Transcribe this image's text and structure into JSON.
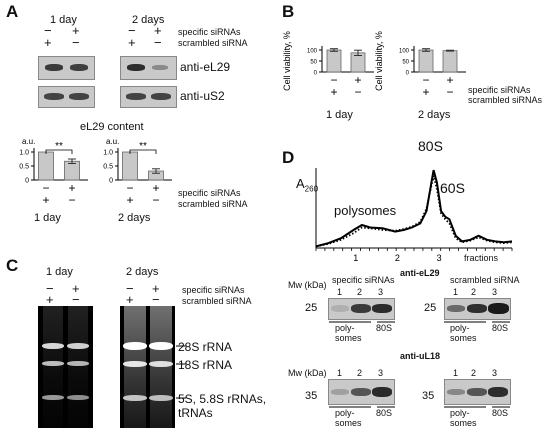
{
  "panels": {
    "A": "A",
    "B": "B",
    "C": "C",
    "D": "D"
  },
  "common": {
    "specific": "specific siRNAs",
    "scrambled": "scrambled siRNA",
    "scrambled_plural": "scrambled siRNAs",
    "minus": "−",
    "plus": "+",
    "day1": "1 day",
    "days2": "2 days"
  },
  "panelA": {
    "antibody1": "anti-eL29",
    "antibody2": "anti-uS2",
    "content_title": "eL29 content",
    "au": "a.u.",
    "significance": "**",
    "ticks": [
      "1.0",
      "0.5",
      "0"
    ]
  },
  "panelB": {
    "ylabel": "Cell viability, %",
    "ticks": [
      "100",
      "50",
      "0"
    ]
  },
  "panelC": {
    "bands": [
      "28S rRNA",
      "18S rRNA",
      "5S, 5.8S rRNAs,",
      "tRNAs"
    ]
  },
  "panelD": {
    "absorbance": "A",
    "absorbance_sub": "260",
    "peak_80s": "80S",
    "peak_60s": "60S",
    "polysomes": "polysomes",
    "fractions": "fractions",
    "xticks": [
      "1",
      "2",
      "3"
    ],
    "blot1_title": "anti-eL29",
    "blot2_title": "anti-uL18",
    "mw": "Mw (kDa)",
    "mw_25": "25",
    "mw_35": "35",
    "lanes": [
      "1",
      "2",
      "3"
    ],
    "poly": "poly-",
    "somes": "somes",
    "s80": "80S"
  },
  "chart_data": [
    {
      "type": "bar",
      "panel": "A-left",
      "title": "eL29 content",
      "ylabel": "a.u.",
      "categories": [
        "scrambled siRNA",
        "specific siRNAs"
      ],
      "values": [
        1.0,
        0.67
      ],
      "errors": [
        0.0,
        0.08
      ],
      "ylim": [
        0,
        1.0
      ],
      "xlabel": "1 day"
    },
    {
      "type": "bar",
      "panel": "A-right",
      "ylabel": "a.u.",
      "categories": [
        "scrambled siRNA",
        "specific siRNAs"
      ],
      "values": [
        1.0,
        0.32
      ],
      "errors": [
        0.0,
        0.08
      ],
      "ylim": [
        0,
        1.0
      ],
      "xlabel": "2 days"
    },
    {
      "type": "bar",
      "panel": "B-left",
      "ylabel": "Cell viability, %",
      "categories": [
        "scrambled siRNAs",
        "specific siRNAs"
      ],
      "values": [
        100,
        87
      ],
      "errors": [
        6,
        12
      ],
      "ylim": [
        0,
        100
      ],
      "xlabel": "1 day"
    },
    {
      "type": "bar",
      "panel": "B-right",
      "ylabel": "Cell viability, %",
      "categories": [
        "scrambled siRNAs",
        "specific siRNAs"
      ],
      "values": [
        100,
        97
      ],
      "errors": [
        6,
        2
      ],
      "ylim": [
        0,
        100
      ],
      "xlabel": "2 days"
    },
    {
      "type": "line",
      "panel": "D",
      "ylabel": "A260",
      "xlabel": "fractions",
      "xticks": [
        1,
        2,
        3
      ],
      "xlim": [
        0,
        4.7
      ],
      "ylim": [
        0,
        1
      ],
      "series": [
        {
          "style": "solid",
          "x": [
            0.0,
            0.3,
            0.6,
            0.9,
            1.1,
            1.3,
            1.6,
            1.9,
            2.1,
            2.3,
            2.5,
            2.65,
            2.75,
            2.82,
            2.9,
            3.0,
            3.1,
            3.2,
            3.35,
            3.5,
            3.7,
            3.9,
            4.1,
            4.3,
            4.5,
            4.7
          ],
          "y": [
            0.02,
            0.06,
            0.12,
            0.22,
            0.28,
            0.25,
            0.24,
            0.2,
            0.22,
            0.25,
            0.3,
            0.45,
            0.75,
            0.95,
            0.8,
            0.45,
            0.38,
            0.35,
            0.15,
            0.08,
            0.1,
            0.15,
            0.1,
            0.08,
            0.07,
            0.08
          ]
        },
        {
          "style": "dotted",
          "x": [
            0.0,
            0.3,
            0.6,
            0.9,
            1.1,
            1.3,
            1.6,
            1.9,
            2.1,
            2.3,
            2.5,
            2.65,
            2.75,
            2.82,
            2.9,
            3.0,
            3.1,
            3.2,
            3.35,
            3.5,
            3.7,
            3.9,
            4.1,
            4.3,
            4.5,
            4.7
          ],
          "y": [
            0.02,
            0.05,
            0.1,
            0.18,
            0.25,
            0.24,
            0.22,
            0.21,
            0.23,
            0.26,
            0.32,
            0.48,
            0.72,
            0.88,
            0.72,
            0.42,
            0.35,
            0.3,
            0.12,
            0.07,
            0.09,
            0.13,
            0.09,
            0.07,
            0.06,
            0.07
          ]
        }
      ]
    }
  ]
}
